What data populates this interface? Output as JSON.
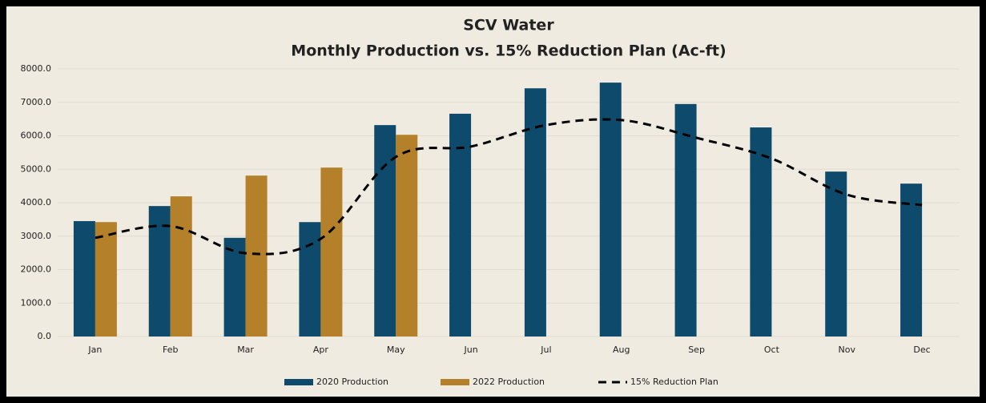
{
  "chart_data": {
    "type": "bar_line",
    "title": "SCV Water",
    "subtitle": "Monthly Production vs. 15% Reduction Plan (Ac-ft)",
    "categories": [
      "Jan",
      "Feb",
      "Mar",
      "Apr",
      "May",
      "Jun",
      "Jul",
      "Aug",
      "Sep",
      "Oct",
      "Nov",
      "Dec"
    ],
    "series": [
      {
        "name": "2020 Production",
        "color": "#0d4a6b",
        "kind": "bar",
        "values": [
          3450,
          3900,
          2950,
          3420,
          6320,
          6660,
          7420,
          7590,
          6950,
          6250,
          4930,
          4570
        ]
      },
      {
        "name": "2022 Production",
        "color": "#b5802a",
        "kind": "bar",
        "values": [
          3420,
          4190,
          4810,
          5050,
          6030,
          null,
          null,
          null,
          null,
          null,
          null,
          null
        ]
      },
      {
        "name": "15% Reduction Plan",
        "color": "#000000",
        "kind": "line",
        "values": [
          2950,
          3300,
          2490,
          2920,
          5370,
          5680,
          6320,
          6470,
          5940,
          5320,
          4240,
          3930
        ]
      }
    ],
    "ylim": [
      0,
      8000
    ],
    "yticks": [
      {
        "value": 0,
        "label": "0.0"
      },
      {
        "value": 1000,
        "label": "1000.0"
      },
      {
        "value": 2000,
        "label": "2000.0"
      },
      {
        "value": 3000,
        "label": "3000.0"
      },
      {
        "value": 4000,
        "label": "4000.0"
      },
      {
        "value": 5000,
        "label": "5000.0"
      },
      {
        "value": 6000,
        "label": "6000.0"
      },
      {
        "value": 7000,
        "label": "7000.0"
      },
      {
        "value": 8000,
        "label": "8000.0"
      }
    ],
    "grid": true,
    "legend": "bottom"
  }
}
